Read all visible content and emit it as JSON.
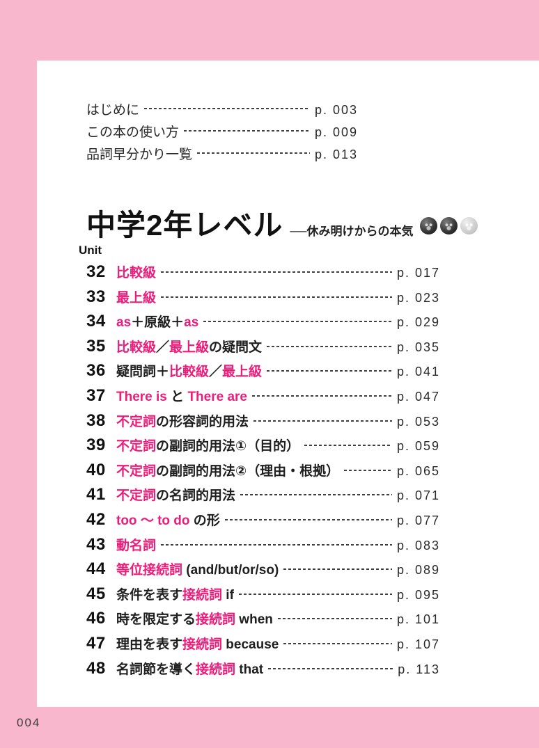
{
  "colors": {
    "border_pink": "#f8b7cd",
    "accent_pink": "#ec1d7a"
  },
  "front_matter": [
    {
      "label": "はじめに",
      "page": "p. 003"
    },
    {
      "label": "この本の使い方",
      "page": "p. 009"
    },
    {
      "label": "品詞早分かり一覧",
      "page": "p. 013"
    }
  ],
  "section": {
    "title": "中学2年レベル",
    "subtitle": "──休み明けからの本気",
    "unit_label": "Unit",
    "level_icons": [
      {
        "name": "level-ball-dark",
        "shade": "dark"
      },
      {
        "name": "level-ball-dark",
        "shade": "dark"
      },
      {
        "name": "level-ball-light",
        "shade": "light"
      }
    ]
  },
  "units": [
    {
      "no": "32",
      "page": "p. 017",
      "parts": [
        {
          "t": "比較級",
          "a": true
        }
      ]
    },
    {
      "no": "33",
      "page": "p. 023",
      "parts": [
        {
          "t": "最上級",
          "a": true
        }
      ]
    },
    {
      "no": "34",
      "page": "p. 029",
      "parts": [
        {
          "t": "as",
          "a": true
        },
        {
          "t": "＋原級＋",
          "a": false
        },
        {
          "t": "as",
          "a": true
        }
      ]
    },
    {
      "no": "35",
      "page": "p. 035",
      "parts": [
        {
          "t": "比較級",
          "a": true
        },
        {
          "t": "／",
          "a": false
        },
        {
          "t": "最上級",
          "a": true
        },
        {
          "t": "の疑問文",
          "a": false
        }
      ]
    },
    {
      "no": "36",
      "page": "p. 041",
      "parts": [
        {
          "t": "疑問詞＋",
          "a": false
        },
        {
          "t": "比較級",
          "a": true
        },
        {
          "t": "／",
          "a": false
        },
        {
          "t": "最上級",
          "a": true
        }
      ]
    },
    {
      "no": "37",
      "page": "p. 047",
      "parts": [
        {
          "t": "There is",
          "a": true
        },
        {
          "t": " と ",
          "a": false
        },
        {
          "t": "There are",
          "a": true
        }
      ]
    },
    {
      "no": "38",
      "page": "p. 053",
      "parts": [
        {
          "t": "不定詞",
          "a": true
        },
        {
          "t": "の形容詞的用法",
          "a": false
        }
      ]
    },
    {
      "no": "39",
      "page": "p. 059",
      "parts": [
        {
          "t": "不定詞",
          "a": true
        },
        {
          "t": "の副詞的用法①（目的）",
          "a": false
        }
      ]
    },
    {
      "no": "40",
      "page": "p. 065",
      "parts": [
        {
          "t": "不定詞",
          "a": true
        },
        {
          "t": "の副詞的用法②（理由・根拠）",
          "a": false
        }
      ]
    },
    {
      "no": "41",
      "page": "p. 071",
      "parts": [
        {
          "t": "不定詞",
          "a": true
        },
        {
          "t": "の名詞的用法",
          "a": false
        }
      ]
    },
    {
      "no": "42",
      "page": "p. 077",
      "parts": [
        {
          "t": "too ～ to do",
          "a": true
        },
        {
          "t": " の形",
          "a": false
        }
      ]
    },
    {
      "no": "43",
      "page": "p. 083",
      "parts": [
        {
          "t": "動名詞",
          "a": true
        }
      ]
    },
    {
      "no": "44",
      "page": "p. 089",
      "parts": [
        {
          "t": "等位接続詞",
          "a": true
        },
        {
          "t": " (and/but/or/so)",
          "a": false
        }
      ]
    },
    {
      "no": "45",
      "page": "p. 095",
      "parts": [
        {
          "t": "条件を表す",
          "a": false
        },
        {
          "t": "接続詞",
          "a": true
        },
        {
          "t": " if",
          "a": false
        }
      ]
    },
    {
      "no": "46",
      "page": "p. 101",
      "parts": [
        {
          "t": "時を限定する",
          "a": false
        },
        {
          "t": "接続詞",
          "a": true
        },
        {
          "t": " when",
          "a": false
        }
      ]
    },
    {
      "no": "47",
      "page": "p. 107",
      "parts": [
        {
          "t": "理由を表す",
          "a": false
        },
        {
          "t": "接続詞",
          "a": true
        },
        {
          "t": " because",
          "a": false
        }
      ]
    },
    {
      "no": "48",
      "page": "p. 113",
      "parts": [
        {
          "t": "名詞節を導く",
          "a": false
        },
        {
          "t": "接続詞",
          "a": true
        },
        {
          "t": " that",
          "a": false
        }
      ]
    }
  ],
  "footer": {
    "page_number": "004"
  }
}
